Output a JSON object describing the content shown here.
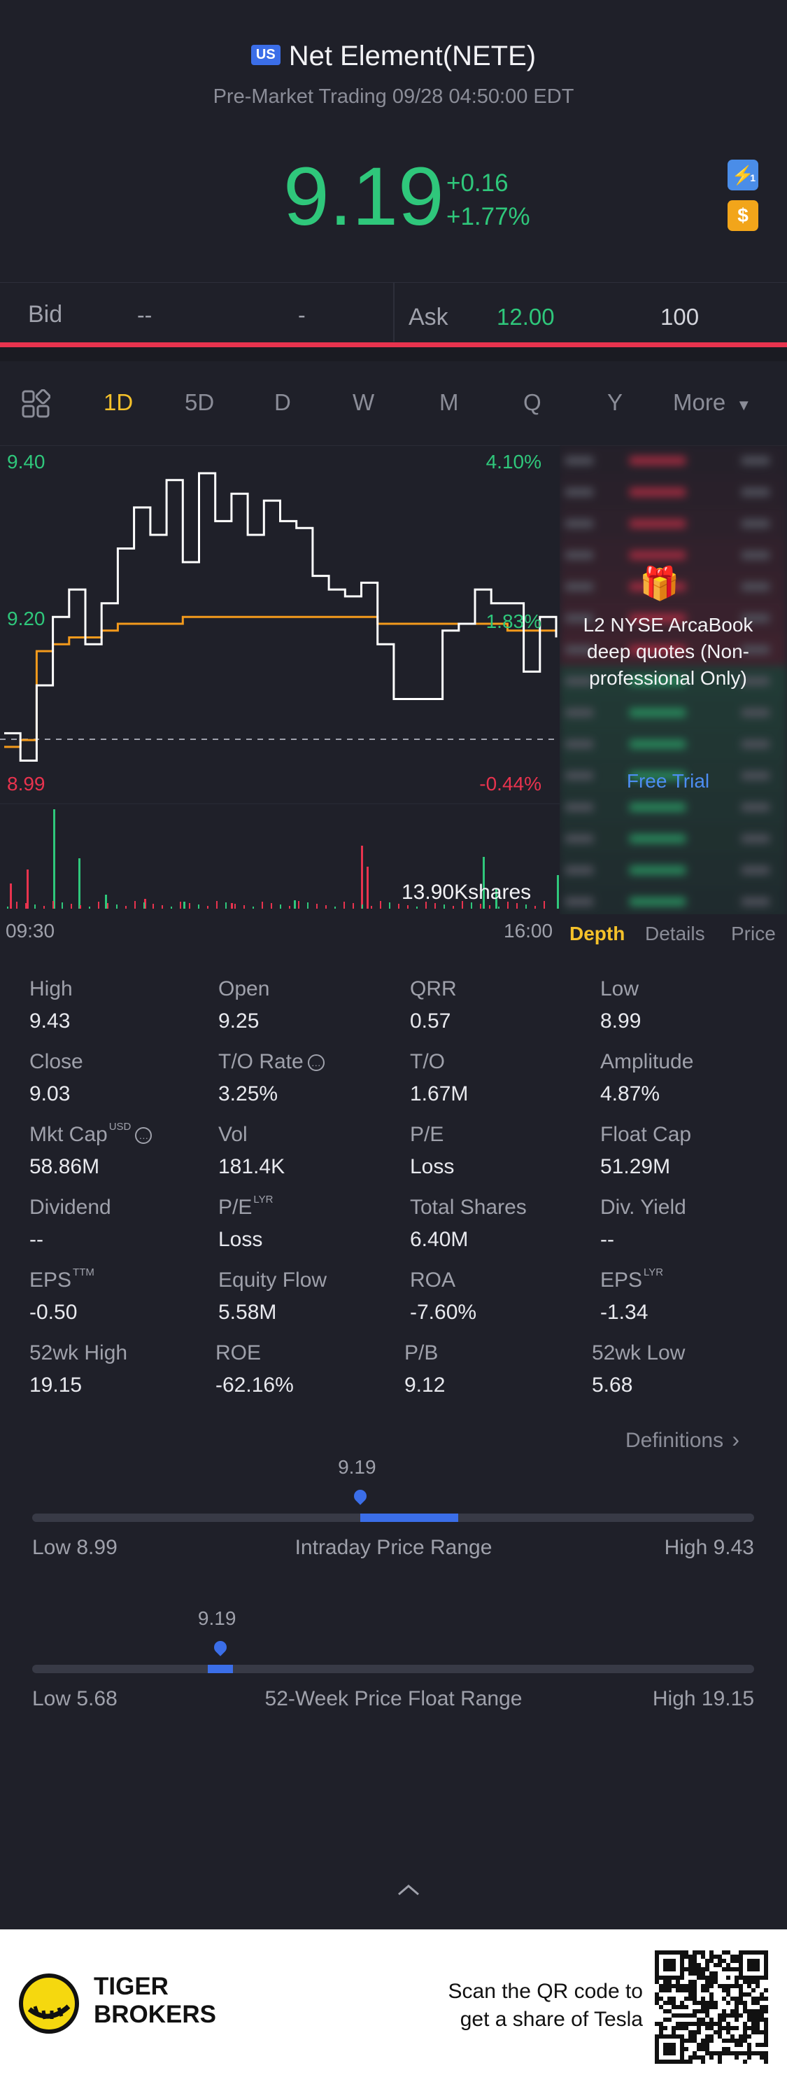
{
  "header": {
    "market_badge": "US",
    "stock_title": "Net Element(NETE)",
    "subtitle": "Pre-Market Trading 09/28 04:50:00 EDT",
    "price": "9.19",
    "change": "+0.16",
    "change_pct": "+1.77%",
    "lightning_icon_label": "1",
    "dollar_icon_label": "$"
  },
  "bidask": {
    "bid_label": "Bid",
    "bid_price": "--",
    "bid_size": "-",
    "ask_label": "Ask",
    "ask_price": "12.00",
    "ask_size": "100"
  },
  "tabs": [
    "1D",
    "5D",
    "D",
    "W",
    "M",
    "Q",
    "Y"
  ],
  "active_tab": "1D",
  "more_label": "More",
  "chart": {
    "y_high": "9.40",
    "y_mid": "9.20",
    "y_low": "8.99",
    "pct_high": "4.10%",
    "pct_mid": "1.83%",
    "pct_low": "-0.44%",
    "volume_label": "13.90Kshares",
    "x_start": "09:30",
    "x_end": "16:00"
  },
  "chart_data": {
    "type": "line",
    "title": "",
    "xlabel": "",
    "ylabel": "",
    "ylim": [
      8.99,
      9.43
    ],
    "x_range": [
      "09:30",
      "16:00"
    ],
    "prev_close": 9.03,
    "series": [
      {
        "values": [
          9.05,
          9.01,
          9.12,
          9.22,
          9.26,
          9.18,
          9.24,
          9.32,
          9.38,
          9.34,
          9.42,
          9.3,
          9.43,
          9.36,
          9.4,
          9.34,
          9.39,
          9.36,
          9.35,
          9.28,
          9.26,
          9.25,
          9.27,
          9.18,
          9.1,
          9.1,
          9.1,
          9.2,
          9.21,
          9.26,
          9.24,
          9.24,
          9.14,
          9.22,
          9.19
        ]
      },
      {
        "values": [
          9.03,
          9.04,
          9.17,
          9.18,
          9.19,
          9.19,
          9.2,
          9.21,
          9.21,
          9.21,
          9.21,
          9.22,
          9.22,
          9.22,
          9.22,
          9.22,
          9.22,
          9.22,
          9.22,
          9.22,
          9.22,
          9.22,
          9.22,
          9.21,
          9.21,
          9.21,
          9.21,
          9.21,
          9.21,
          9.21,
          9.21,
          9.2,
          9.2,
          9.2,
          9.2
        ]
      }
    ]
  },
  "l2_panel": {
    "title": "L2 NYSE ArcaBook deep quotes (Non-professional Only)",
    "cta": "Free Trial"
  },
  "sub_tabs": [
    "Depth",
    "Details",
    "Price"
  ],
  "stats": [
    {
      "label": "High",
      "value": "9.43"
    },
    {
      "label": "Open",
      "value": "9.25"
    },
    {
      "label": "QRR",
      "value": "0.57"
    },
    {
      "label": "Low",
      "value": "8.99"
    },
    {
      "label": "Close",
      "value": "9.03"
    },
    {
      "label": "T/O Rate",
      "value": "3.25%"
    },
    {
      "label": "T/O",
      "value": "1.67M"
    },
    {
      "label": "Amplitude",
      "value": "4.87%"
    },
    {
      "label": "Mkt Cap",
      "value": "58.86M",
      "sup": "USD"
    },
    {
      "label": "Vol",
      "value": "181.4K"
    },
    {
      "label": "P/E",
      "value": "Loss"
    },
    {
      "label": "Float Cap",
      "value": "51.29M"
    },
    {
      "label": "Dividend",
      "value": "--"
    },
    {
      "label": "P/E",
      "value": "Loss",
      "sup": "LYR"
    },
    {
      "label": "Total Shares",
      "value": "6.40M"
    },
    {
      "label": "Div. Yield",
      "value": "--"
    },
    {
      "label": "EPS",
      "value": "-0.50",
      "sup": "TTM"
    },
    {
      "label": "Equity Flow",
      "value": "5.58M"
    },
    {
      "label": "ROA",
      "value": "-7.60%"
    },
    {
      "label": "EPS",
      "value": "-1.34",
      "sup": "LYR"
    },
    {
      "label": "52wk High",
      "value": "19.15"
    },
    {
      "label": "ROE",
      "value": "-62.16%"
    },
    {
      "label": "P/B",
      "value": "9.12"
    },
    {
      "label": "52wk Low",
      "value": "5.68"
    }
  ],
  "definitions_label": "Definitions",
  "intraday_range": {
    "current": "9.19",
    "low_label": "Low 8.99",
    "title": "Intraday Price Range",
    "high_label": "High 9.43",
    "low": 8.99,
    "high": 9.43,
    "value": 9.19
  },
  "week52_range": {
    "current": "9.19",
    "low_label": "Low 5.68",
    "title": "52-Week Price Float Range",
    "high_label": "High 19.15",
    "low": 5.68,
    "high": 19.15,
    "value": 9.19
  },
  "footer": {
    "brand_line1": "TIGER",
    "brand_line2": "BROKERS",
    "cta_line1": "Scan the QR code to",
    "cta_line2": "get a share of Tesla"
  },
  "colors": {
    "up": "#2fc77b",
    "down": "#e8334e",
    "accent": "#f5c12a",
    "blue": "#3b6ee8",
    "background": "#1f2029"
  }
}
